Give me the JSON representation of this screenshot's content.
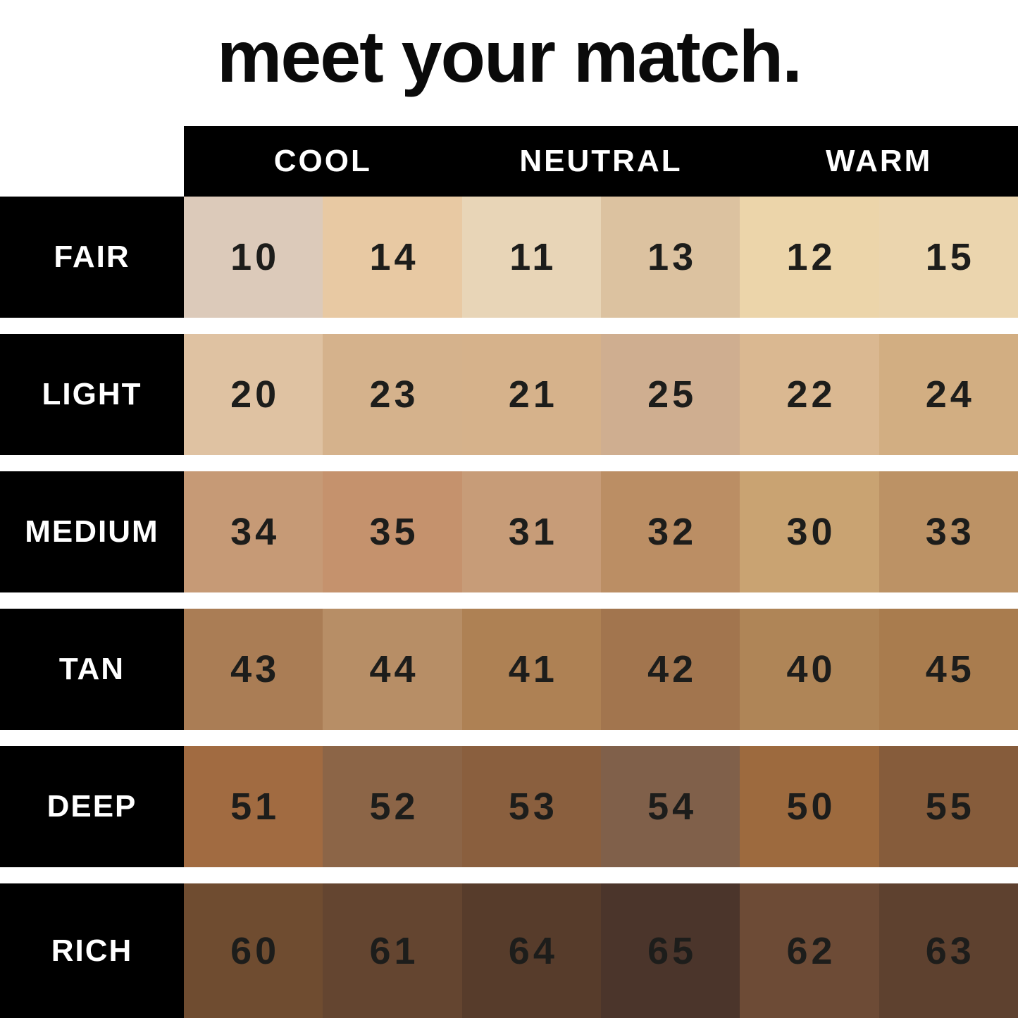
{
  "title": "meet your match.",
  "palette": {
    "page_bg": "#ffffff",
    "header_bg": "#000000",
    "header_text": "#ffffff",
    "row_label_bg": "#000000",
    "row_label_text": "#ffffff",
    "number_text": "#1d1d1b"
  },
  "chart_data": {
    "type": "table",
    "title": "meet your match.",
    "column_groups": [
      {
        "label": "COOL"
      },
      {
        "label": "NEUTRAL"
      },
      {
        "label": "WARM"
      }
    ],
    "columns_per_group": 2,
    "row_labels": [
      "FAIR",
      "LIGHT",
      "MEDIUM",
      "TAN",
      "DEEP",
      "RICH"
    ],
    "rows": [
      {
        "label": "FAIR",
        "swatches": [
          {
            "shade": "10",
            "color": "#dccaba"
          },
          {
            "shade": "14",
            "color": "#e8c9a3"
          },
          {
            "shade": "11",
            "color": "#e8d5b7"
          },
          {
            "shade": "13",
            "color": "#dcc2a0"
          },
          {
            "shade": "12",
            "color": "#ecd5aa"
          },
          {
            "shade": "15",
            "color": "#ebd5ae"
          }
        ]
      },
      {
        "label": "LIGHT",
        "swatches": [
          {
            "shade": "20",
            "color": "#dfc2a2"
          },
          {
            "shade": "23",
            "color": "#d5b28c"
          },
          {
            "shade": "21",
            "color": "#d6b28b"
          },
          {
            "shade": "25",
            "color": "#cfae90"
          },
          {
            "shade": "22",
            "color": "#dab891"
          },
          {
            "shade": "24",
            "color": "#d2ae82"
          }
        ]
      },
      {
        "label": "MEDIUM",
        "swatches": [
          {
            "shade": "34",
            "color": "#c69a76"
          },
          {
            "shade": "35",
            "color": "#c5926d"
          },
          {
            "shade": "31",
            "color": "#c79c78"
          },
          {
            "shade": "32",
            "color": "#bb8e64"
          },
          {
            "shade": "30",
            "color": "#c9a372"
          },
          {
            "shade": "33",
            "color": "#bc9265"
          }
        ]
      },
      {
        "label": "TAN",
        "swatches": [
          {
            "shade": "43",
            "color": "#aa7d55"
          },
          {
            "shade": "44",
            "color": "#b78e66"
          },
          {
            "shade": "41",
            "color": "#ae8154"
          },
          {
            "shade": "42",
            "color": "#a2754e"
          },
          {
            "shade": "40",
            "color": "#af8557"
          },
          {
            "shade": "45",
            "color": "#a97c4e"
          }
        ]
      },
      {
        "label": "DEEP",
        "swatches": [
          {
            "shade": "51",
            "color": "#a16b41"
          },
          {
            "shade": "52",
            "color": "#8c6547"
          },
          {
            "shade": "53",
            "color": "#8a5f3e"
          },
          {
            "shade": "54",
            "color": "#80604a"
          },
          {
            "shade": "50",
            "color": "#9d6a3e"
          },
          {
            "shade": "55",
            "color": "#865c3b"
          }
        ]
      },
      {
        "label": "RICH",
        "swatches": [
          {
            "shade": "60",
            "color": "#6f4c30"
          },
          {
            "shade": "61",
            "color": "#644530"
          },
          {
            "shade": "64",
            "color": "#573c2b"
          },
          {
            "shade": "65",
            "color": "#4b352b"
          },
          {
            "shade": "62",
            "color": "#6d4b36"
          },
          {
            "shade": "63",
            "color": "#5e412f"
          }
        ]
      }
    ]
  }
}
